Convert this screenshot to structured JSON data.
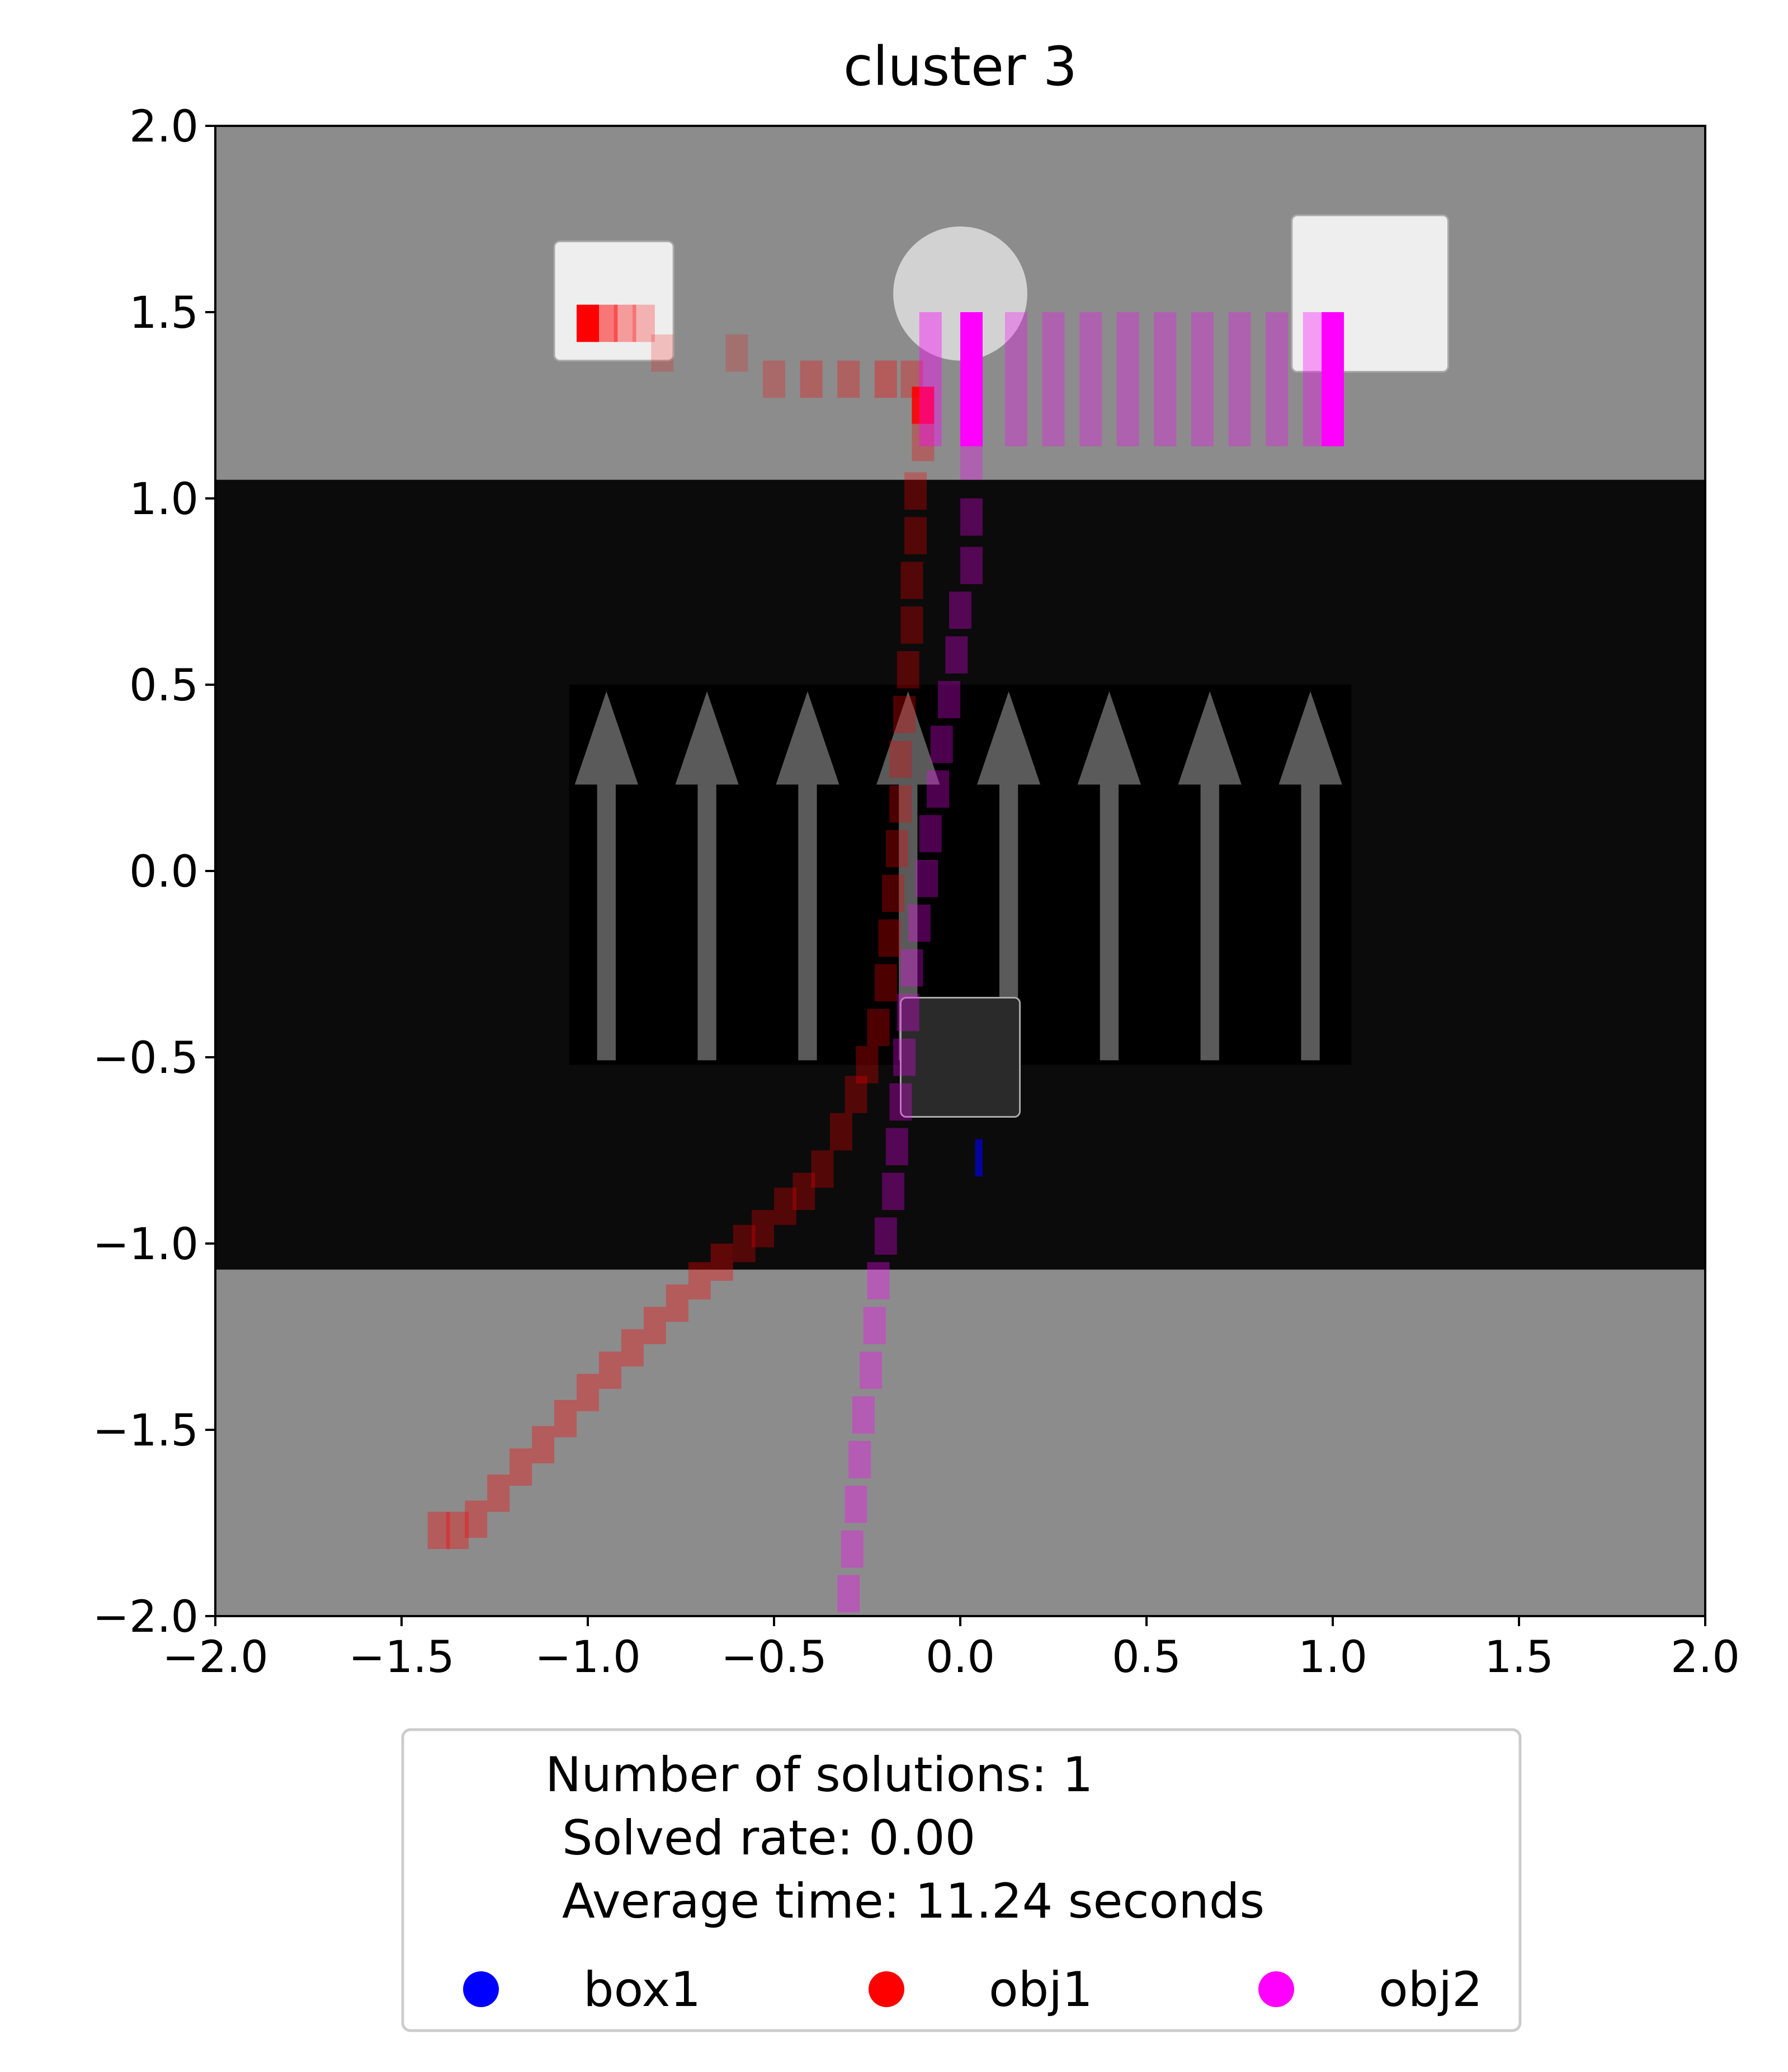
{
  "chart_data": {
    "type": "scatter",
    "title": "cluster 3",
    "xlabel": "",
    "ylabel": "",
    "xlim": [
      -2.0,
      2.0
    ],
    "ylim": [
      -2.0,
      2.0
    ],
    "grid": false,
    "x_ticks": [
      "−2.0",
      "−1.5",
      "−1.0",
      "−0.5",
      "0.0",
      "0.5",
      "1.0",
      "1.5",
      "2.0"
    ],
    "y_ticks": [
      "2.0",
      "1.5",
      "1.0",
      "0.5",
      "0.0",
      "−0.5",
      "−1.0",
      "−1.5",
      "−2.0"
    ],
    "x_tick_values": [
      -2.0,
      -1.5,
      -1.0,
      -0.5,
      0.0,
      0.5,
      1.0,
      1.5,
      2.0
    ],
    "y_tick_values": [
      2.0,
      1.5,
      1.0,
      0.5,
      0.0,
      -0.5,
      -1.0,
      -1.5,
      -2.0
    ],
    "legend": {
      "placement": "below",
      "info_lines": [
        "Number of solutions: 1",
        "Solved rate: 0.00",
        "Average time: 11.24 seconds"
      ],
      "entries": [
        {
          "name": "box1",
          "color": "#0000ff"
        },
        {
          "name": "obj1",
          "color": "#ff0000"
        },
        {
          "name": "obj2",
          "color": "#ff00ff"
        }
      ]
    },
    "background": {
      "floor_color": "#8c8c8c",
      "conveyor_color": "#0b0b0b",
      "conveyor_y_range": [
        -1.07,
        1.05
      ],
      "arrow_panel_x_range": [
        -1.05,
        1.05
      ],
      "arrow_panel_y_range": [
        -0.52,
        0.5
      ],
      "arrow_x_positions": [
        -0.95,
        -0.68,
        -0.41,
        -0.14,
        0.13,
        0.4,
        0.67,
        0.94
      ],
      "arrow_color": "#5a5a5a",
      "objects": [
        {
          "shape": "cube",
          "center": [
            -0.93,
            1.53
          ],
          "size": 0.32,
          "color": "#eeeeee"
        },
        {
          "shape": "sphere",
          "center": [
            0.0,
            1.55
          ],
          "size": 0.36,
          "color": "#d2d2d2"
        },
        {
          "shape": "cube",
          "center": [
            1.1,
            1.55
          ],
          "size": 0.42,
          "color": "#eeeeee"
        },
        {
          "shape": "cube",
          "center": [
            0.0,
            -0.5
          ],
          "size": 0.32,
          "color": "#2a2a2a"
        }
      ]
    },
    "series": [
      {
        "name": "obj1",
        "color": "#ff0000",
        "points": [
          [
            -1.0,
            1.47,
            1.0
          ],
          [
            -0.95,
            1.47,
            0.5
          ],
          [
            -0.9,
            1.47,
            0.35
          ],
          [
            -0.85,
            1.47,
            0.25
          ],
          [
            -0.8,
            1.39,
            0.2
          ],
          [
            -0.6,
            1.39,
            0.2
          ],
          [
            -0.5,
            1.32,
            0.25
          ],
          [
            -0.4,
            1.32,
            0.3
          ],
          [
            -0.3,
            1.32,
            0.3
          ],
          [
            -0.2,
            1.32,
            0.35
          ],
          [
            -0.13,
            1.32,
            0.3
          ],
          [
            -0.1,
            1.25,
            0.9
          ],
          [
            -0.1,
            1.15,
            0.3
          ],
          [
            -0.12,
            1.02,
            0.3
          ],
          [
            -0.12,
            0.9,
            0.3
          ],
          [
            -0.13,
            0.78,
            0.3
          ],
          [
            -0.13,
            0.66,
            0.3
          ],
          [
            -0.14,
            0.54,
            0.3
          ],
          [
            -0.15,
            0.42,
            0.3
          ],
          [
            -0.16,
            0.3,
            0.3
          ],
          [
            -0.16,
            0.18,
            0.3
          ],
          [
            -0.17,
            0.06,
            0.3
          ],
          [
            -0.18,
            -0.06,
            0.3
          ],
          [
            -0.19,
            -0.18,
            0.3
          ],
          [
            -0.2,
            -0.3,
            0.3
          ],
          [
            -0.22,
            -0.42,
            0.3
          ],
          [
            -0.25,
            -0.52,
            0.3
          ],
          [
            -0.28,
            -0.6,
            0.3
          ],
          [
            -0.32,
            -0.7,
            0.3
          ],
          [
            -0.37,
            -0.8,
            0.3
          ],
          [
            -0.42,
            -0.86,
            0.3
          ],
          [
            -0.47,
            -0.9,
            0.3
          ],
          [
            -0.53,
            -0.96,
            0.3
          ],
          [
            -0.58,
            -1.0,
            0.3
          ],
          [
            -0.64,
            -1.05,
            0.35
          ],
          [
            -0.7,
            -1.1,
            0.35
          ],
          [
            -0.76,
            -1.16,
            0.35
          ],
          [
            -0.82,
            -1.22,
            0.35
          ],
          [
            -0.88,
            -1.28,
            0.35
          ],
          [
            -0.94,
            -1.34,
            0.35
          ],
          [
            -1.0,
            -1.4,
            0.35
          ],
          [
            -1.06,
            -1.47,
            0.35
          ],
          [
            -1.12,
            -1.54,
            0.35
          ],
          [
            -1.18,
            -1.6,
            0.35
          ],
          [
            -1.24,
            -1.67,
            0.35
          ],
          [
            -1.3,
            -1.74,
            0.35
          ],
          [
            -1.35,
            -1.77,
            0.35
          ],
          [
            -1.4,
            -1.77,
            0.35
          ]
        ]
      },
      {
        "name": "obj2",
        "color": "#ff00ff",
        "points": [
          [
            0.03,
            1.32,
            1.0
          ],
          [
            0.15,
            1.32,
            0.3
          ],
          [
            0.25,
            1.32,
            0.3
          ],
          [
            0.35,
            1.32,
            0.3
          ],
          [
            0.45,
            1.32,
            0.3
          ],
          [
            0.55,
            1.32,
            0.3
          ],
          [
            0.65,
            1.32,
            0.3
          ],
          [
            0.75,
            1.32,
            0.3
          ],
          [
            0.85,
            1.32,
            0.3
          ],
          [
            0.95,
            1.32,
            0.35
          ],
          [
            1.0,
            1.32,
            1.0
          ],
          [
            -0.08,
            1.32,
            0.4
          ],
          [
            0.03,
            1.1,
            0.3
          ],
          [
            0.03,
            0.95,
            0.3
          ],
          [
            0.03,
            0.82,
            0.3
          ],
          [
            0.0,
            0.7,
            0.3
          ],
          [
            -0.01,
            0.58,
            0.3
          ],
          [
            -0.03,
            0.46,
            0.3
          ],
          [
            -0.05,
            0.34,
            0.3
          ],
          [
            -0.06,
            0.22,
            0.3
          ],
          [
            -0.08,
            0.1,
            0.3
          ],
          [
            -0.09,
            -0.02,
            0.3
          ],
          [
            -0.11,
            -0.14,
            0.3
          ],
          [
            -0.13,
            -0.26,
            0.3
          ],
          [
            -0.14,
            -0.38,
            0.3
          ],
          [
            -0.15,
            -0.5,
            0.3
          ],
          [
            -0.16,
            -0.62,
            0.3
          ],
          [
            -0.17,
            -0.74,
            0.3
          ],
          [
            -0.18,
            -0.86,
            0.3
          ],
          [
            -0.2,
            -0.98,
            0.3
          ],
          [
            -0.22,
            -1.1,
            0.35
          ],
          [
            -0.23,
            -1.22,
            0.35
          ],
          [
            -0.24,
            -1.34,
            0.35
          ],
          [
            -0.26,
            -1.46,
            0.35
          ],
          [
            -0.27,
            -1.58,
            0.35
          ],
          [
            -0.28,
            -1.7,
            0.35
          ],
          [
            -0.29,
            -1.82,
            0.35
          ],
          [
            -0.3,
            -1.94,
            0.35
          ]
        ]
      },
      {
        "name": "box1",
        "color": "#0000ff",
        "points": [
          [
            0.05,
            -0.77,
            0.6
          ]
        ]
      }
    ]
  }
}
